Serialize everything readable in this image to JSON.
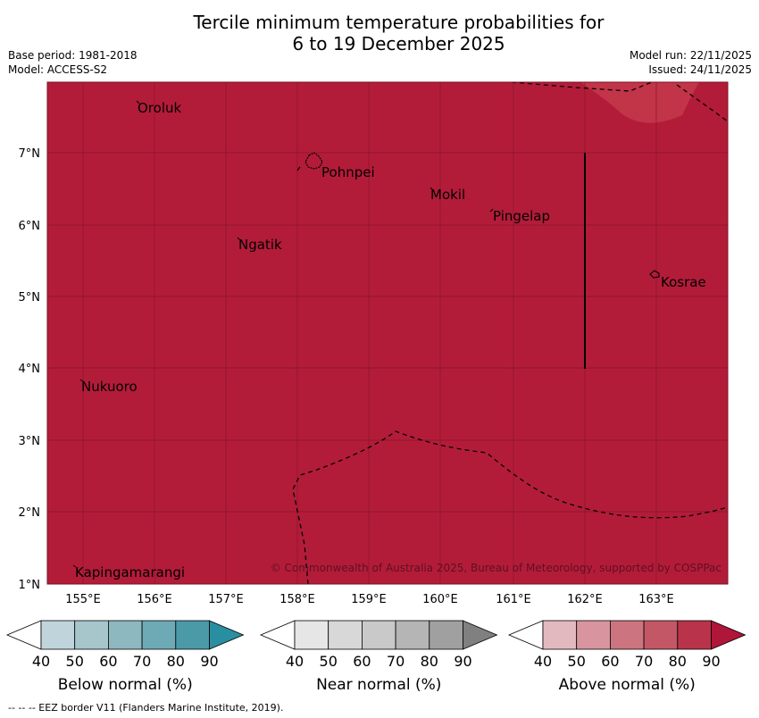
{
  "title": {
    "line1": "Tercile minimum temperature probabilities for",
    "line2": "6 to 19 December 2025"
  },
  "meta": {
    "base_period": "Base period: 1981-2018",
    "model": "Model: ACCESS-S2",
    "model_run": "Model run: 22/11/2025",
    "issued": "Issued: 24/11/2025"
  },
  "map": {
    "fill_color": "#b31c39",
    "patch_color": "#c23448",
    "grid_color": "#7a1326",
    "copyright": "© Commonwealth of Australia 2025, Bureau of Meteorology, supported by COSPPac",
    "lon_labels": [
      "155°E",
      "156°E",
      "157°E",
      "158°E",
      "159°E",
      "160°E",
      "161°E",
      "162°E",
      "163°E"
    ],
    "lat_labels": [
      "7°N",
      "6°N",
      "5°N",
      "4°N",
      "3°N",
      "2°N",
      "1°N"
    ],
    "places": [
      {
        "name": "Oroluk"
      },
      {
        "name": "Pohnpei"
      },
      {
        "name": "Mokil"
      },
      {
        "name": "Pingelap"
      },
      {
        "name": "Ngatik"
      },
      {
        "name": "Kosrae"
      },
      {
        "name": "Nukuoro"
      },
      {
        "name": "Kapingamarangi"
      }
    ]
  },
  "legend": {
    "ticks": [
      "40",
      "50",
      "60",
      "70",
      "80",
      "90"
    ],
    "below": {
      "label": "Below normal (%)",
      "colors": [
        "#ffffff",
        "#c0d5db",
        "#a6c6cc",
        "#8db8c0",
        "#6eaab6",
        "#4a9aa8",
        "#2a8ea1"
      ]
    },
    "near": {
      "label": "Near normal (%)",
      "colors": [
        "#ffffff",
        "#e6e6e6",
        "#d8d8d8",
        "#c9c9c9",
        "#b5b5b5",
        "#a0a0a0",
        "#808080"
      ]
    },
    "above": {
      "label": "Above normal (%)",
      "colors": [
        "#ffffff",
        "#e3b9c0",
        "#d8959f",
        "#cc747f",
        "#c35766",
        "#b9334a",
        "#b0153a"
      ]
    }
  },
  "footer": "--  --  -- EEZ border V11 (Flanders Marine Institute, 2019)."
}
